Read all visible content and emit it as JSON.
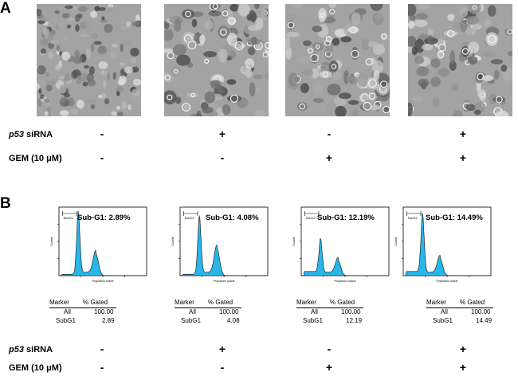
{
  "panel_a": {
    "label": "A",
    "row_labels": {
      "p53_italic": "p53",
      "p53_rest": " siRNA",
      "gem": "GEM (10 μM)"
    },
    "p53_signs": [
      "-",
      "+",
      "-",
      "+"
    ],
    "gem_signs": [
      "-",
      "-",
      "+",
      "+"
    ]
  },
  "panel_b": {
    "label": "B",
    "histograms": [
      {
        "sub_g1": "Sub-G1: 2.89%",
        "axis_x_label": "Propidium Iodide",
        "axis_y_label": "Counts",
        "gate_label": "SubG1",
        "table": {
          "h1": "Marker",
          "h2": "% Gated",
          "r1c1": "All",
          "r1c2": "100.00",
          "r2c1": "SubG1",
          "r2c2": "2.89"
        }
      },
      {
        "sub_g1": "Sub-G1: 4.08%",
        "axis_x_label": "Propidium Iodide",
        "axis_y_label": "Counts",
        "gate_label": "SubG1",
        "table": {
          "h1": "Marker",
          "h2": "% Gated",
          "r1c1": "All",
          "r1c2": "100.00",
          "r2c1": "SubG1",
          "r2c2": "4.08"
        }
      },
      {
        "sub_g1": "Sub-G1: 12.19%",
        "axis_x_label": "Propidium Iodide",
        "axis_y_label": "Counts",
        "gate_label": "SubG1",
        "table": {
          "h1": "Marker",
          "h2": "% Gated",
          "r1c1": "All",
          "r1c2": "100.00",
          "r2c1": "SubG1",
          "r2c2": "12.19"
        }
      },
      {
        "sub_g1": "Sub-G1: 14.49%",
        "axis_x_label": "Propidium Iodide",
        "axis_y_label": "Counts",
        "gate_label": "SubG1",
        "table": {
          "h1": "Marker",
          "h2": "% Gated",
          "r1c1": "All",
          "r1c2": "100.00",
          "r2c1": "SubG1",
          "r2c2": "14.49"
        }
      }
    ],
    "row_labels": {
      "p53_italic": "p53",
      "p53_rest": " siRNA",
      "gem": "GEM (10 μM)"
    },
    "p53_signs": [
      "-",
      "+",
      "-",
      "+"
    ],
    "gem_signs": [
      "-",
      "-",
      "+",
      "+"
    ]
  },
  "colors": {
    "histogram_fill": "#29b6ea",
    "histogram_line": "#111111"
  }
}
